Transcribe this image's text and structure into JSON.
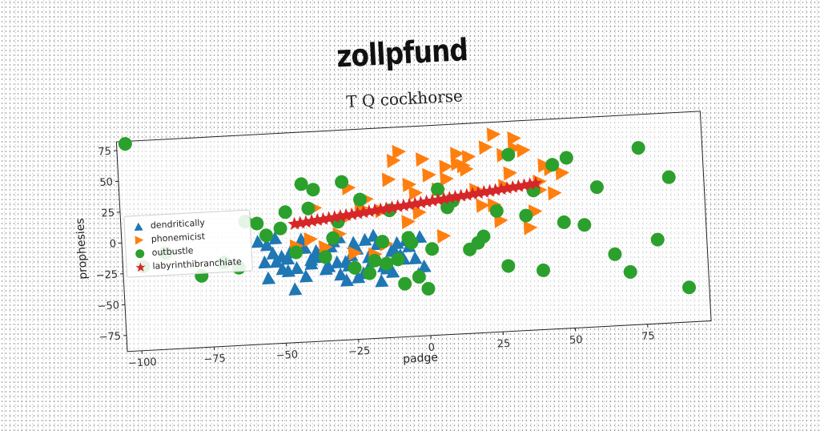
{
  "page": {
    "suptitle": "zollpfund"
  },
  "chart_data": {
    "type": "scatter",
    "title": "T Q cockhorse",
    "xlabel": "padge",
    "ylabel": "prophesies",
    "xlim": [
      -105,
      97
    ],
    "ylim": [
      -88,
      82
    ],
    "xticks": [
      -100,
      -75,
      -50,
      -25,
      0,
      25,
      50,
      75
    ],
    "yticks": [
      -75,
      -50,
      -25,
      0,
      25,
      50,
      75
    ],
    "legend_position": "center-left",
    "series": [
      {
        "name": "dendritically",
        "marker": "triangle-up",
        "color": "#1f77b4",
        "x": [
          -58,
          -55,
          -52,
          -50,
          -48,
          -45,
          -42,
          -40,
          -38,
          -35,
          -32,
          -30,
          -28,
          -25,
          -22,
          -20,
          -18,
          -15,
          -12,
          -10,
          -8,
          -5,
          -3,
          -55,
          -50,
          -47,
          -43,
          -40,
          -37,
          -33,
          -30,
          -27,
          -24,
          -21,
          -18,
          -14,
          -11,
          -7,
          -4,
          -52,
          -46,
          -42,
          -36,
          -34,
          -28,
          -26,
          -20,
          -16,
          -12,
          -9,
          -6,
          -2,
          -1,
          -44,
          -38,
          -24,
          -31,
          -17,
          -48,
          -56,
          -53
        ],
        "y": [
          -5,
          -8,
          -3,
          -18,
          -20,
          -28,
          -12,
          -22,
          -15,
          -30,
          -8,
          -5,
          -25,
          -10,
          -35,
          -22,
          -5,
          -30,
          -18,
          -12,
          -25,
          -8,
          -38,
          -35,
          -28,
          -15,
          -5,
          -25,
          -20,
          -12,
          -35,
          -28,
          -15,
          -8,
          -25,
          -32,
          -18,
          -10,
          -25,
          -22,
          -45,
          -35,
          -15,
          -28,
          -40,
          -20,
          -30,
          -42,
          -35,
          -22,
          -15,
          -8,
          -32,
          -10,
          -18,
          -38,
          -25,
          -12,
          -30,
          -22,
          -15
        ]
      },
      {
        "name": "phonemicist",
        "marker": "triangle-right",
        "color": "#ff7f0e",
        "x": [
          -40,
          -35,
          -30,
          -28,
          -22,
          -20,
          -15,
          -12,
          -10,
          -8,
          -5,
          -3,
          0,
          2,
          5,
          8,
          10,
          12,
          15,
          18,
          20,
          22,
          25,
          28,
          30,
          32,
          35,
          38,
          40,
          42,
          45,
          48,
          -45,
          -25,
          -18,
          -2,
          6,
          14,
          26,
          36,
          -38,
          -6,
          16,
          28,
          44,
          32,
          -14,
          8,
          24,
          40,
          -26,
          12
        ],
        "y": [
          -5,
          -12,
          -2,
          10,
          18,
          25,
          15,
          40,
          55,
          62,
          35,
          28,
          55,
          42,
          30,
          48,
          20,
          58,
          45,
          28,
          15,
          62,
          72,
          55,
          40,
          68,
          58,
          8,
          32,
          45,
          22,
          38,
          -10,
          -18,
          -20,
          12,
          -8,
          48,
          2,
          -5,
          20,
          5,
          55,
          30,
          42,
          60,
          -12,
          38,
          15,
          25,
          35,
          50
        ]
      },
      {
        "name": "outbustle",
        "marker": "circle",
        "color": "#2ca02c",
        "x": [
          -102,
          -98,
          -90,
          -78,
          -65,
          -58,
          -50,
          -45,
          -40,
          -38,
          -35,
          -32,
          -28,
          -25,
          -22,
          -20,
          -15,
          -12,
          -10,
          -8,
          -5,
          -3,
          0,
          5,
          10,
          15,
          20,
          25,
          30,
          35,
          40,
          45,
          50,
          55,
          60,
          65,
          70,
          75,
          80,
          85,
          90,
          -70,
          -55,
          -42,
          -18,
          -6,
          8,
          18,
          28,
          38,
          48,
          -62,
          -48,
          -30,
          -14,
          2
        ],
        "y": [
          80,
          -20,
          -10,
          -30,
          -25,
          10,
          5,
          -15,
          20,
          35,
          -20,
          -5,
          40,
          -30,
          25,
          -35,
          -10,
          15,
          -25,
          -45,
          -12,
          -40,
          -50,
          30,
          20,
          -20,
          -10,
          10,
          55,
          5,
          -40,
          45,
          50,
          -5,
          25,
          -30,
          -45,
          55,
          -20,
          30,
          -60,
          -20,
          0,
          40,
          -25,
          -8,
          15,
          -15,
          -35,
          25,
          -2,
          12,
          18,
          8,
          -28,
          -18
        ]
      },
      {
        "name": "labyrinthibranchiate",
        "marker": "star",
        "color": "#d62728",
        "x": [
          -45,
          -43,
          -41,
          -39,
          -37,
          -35,
          -33,
          -31,
          -29,
          -27,
          -25,
          -23,
          -21,
          -19,
          -17,
          -15,
          -13,
          -11,
          -9,
          -7,
          -5,
          -3,
          -1,
          1,
          3,
          5,
          7,
          9,
          11,
          13,
          15,
          17,
          19,
          21,
          23,
          25,
          27,
          29,
          31,
          33,
          35,
          37,
          39
        ],
        "y": [
          8,
          8.5,
          9,
          9.6,
          10.1,
          10.6,
          11.2,
          11.7,
          12.3,
          12.8,
          13.3,
          13.9,
          14.4,
          15,
          15.5,
          16,
          16.6,
          17.1,
          17.7,
          18.2,
          18.7,
          19.3,
          19.8,
          20.4,
          20.9,
          21.4,
          22,
          22.5,
          23.1,
          23.6,
          24.1,
          24.7,
          25.2,
          25.8,
          26.3,
          26.8,
          27.4,
          27.9,
          28.5,
          29,
          29.5,
          30.1,
          30.6
        ]
      }
    ]
  }
}
